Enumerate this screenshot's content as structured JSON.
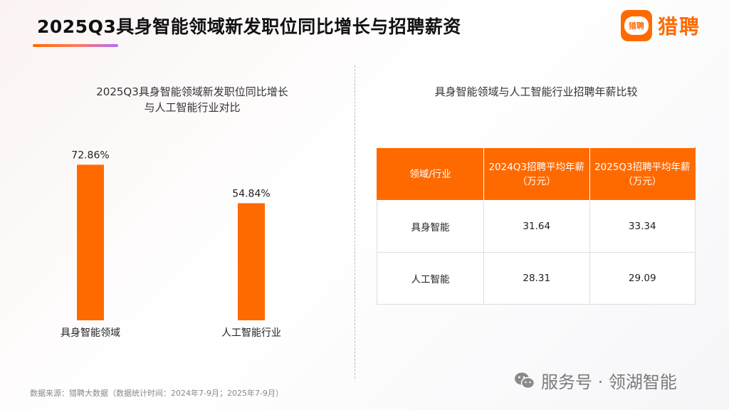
{
  "header": {
    "title": "2025Q3具身智能领域新发职位同比增长与招聘薪资",
    "logo_icon_text": "猎聘",
    "logo_text": "猎聘"
  },
  "colors": {
    "accent": "#ff6a00",
    "bar": "#ff6a00"
  },
  "left_chart": {
    "title_line1": "2025Q3具身智能领域新发职位同比增长",
    "title_line2": "与人工智能行业对比"
  },
  "chart_data": {
    "type": "bar",
    "title": "2025Q3具身智能领域新发职位同比增长与人工智能行业对比",
    "categories": [
      "具身智能领域",
      "人工智能行业"
    ],
    "values": [
      72.86,
      54.84
    ],
    "value_labels": [
      "72.86%",
      "54.84%"
    ],
    "unit": "%",
    "ylim": [
      0,
      100
    ],
    "grid": false,
    "legend": "none"
  },
  "right_table": {
    "title": "具身智能领域与人工智能行业招聘年薪比较",
    "headers": [
      {
        "line1": "领域/行业",
        "line2": ""
      },
      {
        "line1": "2024Q3招聘平均年薪",
        "line2": "（万元）"
      },
      {
        "line1": "2025Q3招聘平均年薪",
        "line2": "（万元）"
      }
    ],
    "rows": [
      [
        "具身智能",
        "31.64",
        "33.34"
      ],
      [
        "人工智能",
        "28.31",
        "29.09"
      ]
    ]
  },
  "footer": {
    "source": "数据来源：猎聘大数据（数据统计时间：2024年7-9月；2025年7-9月）",
    "watermark": "服务号 · 领湖智能",
    "watermark_icon": "wechat-icon"
  }
}
